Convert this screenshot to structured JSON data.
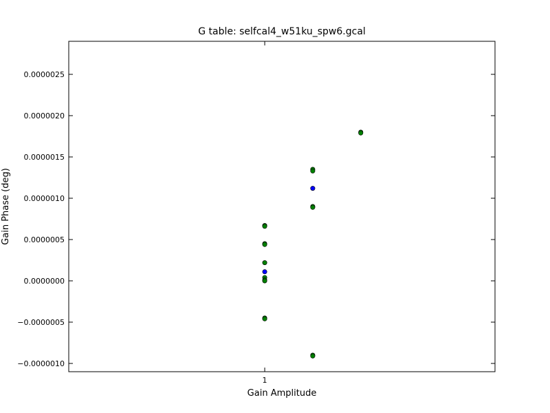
{
  "chart_data": {
    "type": "scatter",
    "title": "G table: selfcal4_w51ku_spw6.gcal",
    "xlabel": "Gain Amplitude",
    "ylabel": "Gain Phase (deg)",
    "xlim": [
      0.99999999998,
      1.0000000000235
    ],
    "ylim": [
      -1.1e-06,
      2.9e-06
    ],
    "x_tick_labels": [
      {
        "value": 1.0,
        "label": "1"
      }
    ],
    "y_ticks": [
      {
        "value": -1e-06,
        "label": "−0.0000010"
      },
      {
        "value": -5e-07,
        "label": "−0.0000005"
      },
      {
        "value": 0.0,
        "label": "0.0000000"
      },
      {
        "value": 5e-07,
        "label": "0.0000005"
      },
      {
        "value": 1e-06,
        "label": "0.0000010"
      },
      {
        "value": 1.5e-06,
        "label": "0.0000015"
      },
      {
        "value": 2e-06,
        "label": "0.0000020"
      },
      {
        "value": 2.5e-06,
        "label": "0.0000025"
      }
    ],
    "grid": false,
    "series": [
      {
        "color": "#0000ff",
        "points": [
          {
            "x": 1.0,
            "y": 1.1e-07
          },
          {
            "x": 1.0000000000049,
            "y": 1.12e-06
          }
        ]
      },
      {
        "color": "#008000",
        "points": [
          {
            "x": 1.0,
            "y": 6.7e-07
          },
          {
            "x": 1.0,
            "y": 6.6e-07
          },
          {
            "x": 1.0,
            "y": 4.5e-07
          },
          {
            "x": 1.0,
            "y": 4.4e-07
          },
          {
            "x": 1.0,
            "y": 2.2e-07
          },
          {
            "x": 1.0,
            "y": 4e-08
          },
          {
            "x": 1.0,
            "y": 1e-08
          },
          {
            "x": 1.0,
            "y": 0.0
          },
          {
            "x": 1.0,
            "y": -4.5e-07
          },
          {
            "x": 1.0,
            "y": -4.6e-07
          },
          {
            "x": 1.0000000000049,
            "y": 1.35e-06
          },
          {
            "x": 1.0000000000049,
            "y": 1.33e-06
          },
          {
            "x": 1.0000000000049,
            "y": 9e-07
          },
          {
            "x": 1.0000000000049,
            "y": 8.9e-07
          },
          {
            "x": 1.0000000000049,
            "y": -9e-07
          },
          {
            "x": 1.0000000000049,
            "y": -9.1e-07
          },
          {
            "x": 1.0000000000098,
            "y": 1.8e-06
          },
          {
            "x": 1.0000000000098,
            "y": 1.79e-06
          }
        ]
      }
    ]
  }
}
